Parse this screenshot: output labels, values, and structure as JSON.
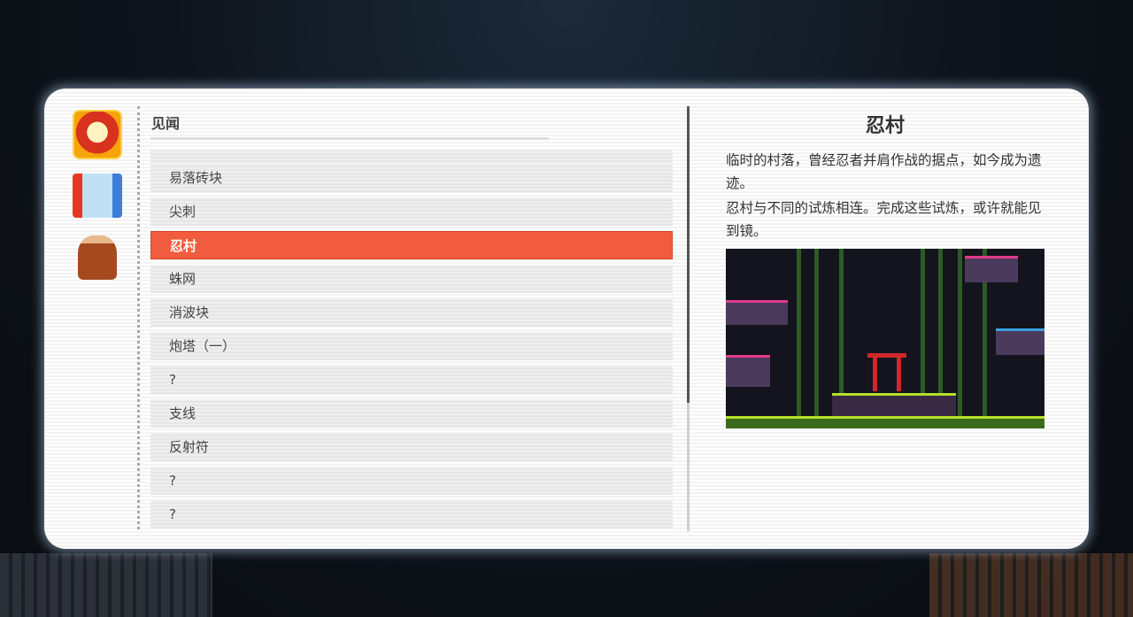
{
  "list": {
    "header": "见闻",
    "items": [
      {
        "label": "",
        "selected": false
      },
      {
        "label": "易落砖块",
        "selected": false
      },
      {
        "label": "尖刺",
        "selected": false
      },
      {
        "label": "忍村",
        "selected": true
      },
      {
        "label": "蛛网",
        "selected": false
      },
      {
        "label": "消波块",
        "selected": false
      },
      {
        "label": "炮塔（一）",
        "selected": false
      },
      {
        "label": "?",
        "selected": false
      },
      {
        "label": "支线",
        "selected": false
      },
      {
        "label": "反射符",
        "selected": false
      },
      {
        "label": "?",
        "selected": false
      },
      {
        "label": "?",
        "selected": false
      }
    ]
  },
  "categories": [
    "daruma-icon",
    "map-scroll-icon",
    "tree-stump-icon"
  ],
  "detail": {
    "title": "忍村",
    "paragraphs": [
      "临时的村落，曾经忍者并肩作战的据点，如今成为遗迹。",
      "忍村与不同的试炼相连。完成这些试炼，或许就能见到镜。"
    ]
  },
  "colors": {
    "accent": "#f25c3e",
    "panel": "#ffffff"
  }
}
